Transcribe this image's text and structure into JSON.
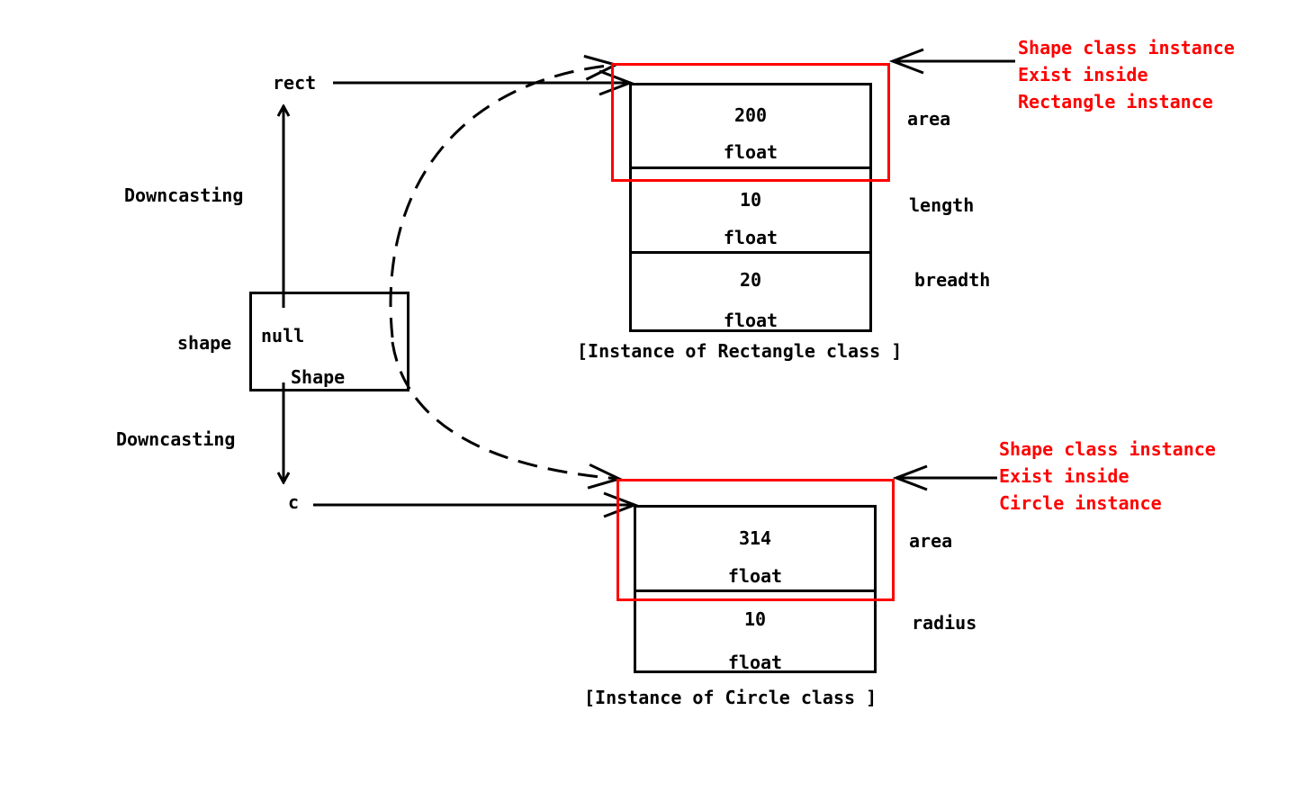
{
  "references": {
    "rect": "rect",
    "c": "c",
    "shape": "shape",
    "shape_value": "null",
    "shape_type": "Shape"
  },
  "downcast_labels": {
    "upper": "Downcasting",
    "lower": "Downcasting"
  },
  "rectangle": {
    "fields": [
      {
        "value": "200",
        "type": "float",
        "name": "area"
      },
      {
        "value": "10",
        "type": "float",
        "name": "length"
      },
      {
        "value": "20",
        "type": "float",
        "name": "breadth"
      }
    ],
    "caption": "[Instance of Rectangle class ]",
    "note": [
      "Shape class instance",
      "Exist inside",
      "Rectangle instance"
    ]
  },
  "circle": {
    "fields": [
      {
        "value": "314",
        "type": "float",
        "name": "area"
      },
      {
        "value": "10",
        "type": "float",
        "name": "radius"
      }
    ],
    "caption": "[Instance of Circle class ]",
    "note": [
      "Shape class instance",
      "Exist inside",
      "Circle instance"
    ]
  },
  "colors": {
    "highlight": "#ff0000",
    "ink": "#000000",
    "background": "#ffffff"
  }
}
